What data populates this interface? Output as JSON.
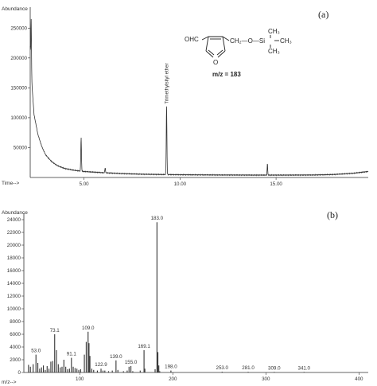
{
  "chart_data": [
    {
      "id": "a",
      "type": "line",
      "panel_label": "(a)",
      "ylabel": "Abundance",
      "xlabel": "Time-->",
      "xlim": [
        2.2,
        19.8
      ],
      "ylim": [
        0,
        285000
      ],
      "x_ticks": [
        5.0,
        10.0,
        15.0
      ],
      "x_tick_labels": [
        "5.00",
        "10.00",
        "15.00"
      ],
      "y_ticks": [
        50000,
        100000,
        150000,
        200000,
        250000
      ],
      "y_tick_labels": [
        "50000",
        "100000",
        "150000",
        "200000",
        "250000"
      ],
      "baseline": [
        [
          2.2,
          220000
        ],
        [
          2.3,
          150000
        ],
        [
          2.4,
          105000
        ],
        [
          2.6,
          72000
        ],
        [
          2.8,
          52000
        ],
        [
          3.0,
          38000
        ],
        [
          3.3,
          27000
        ],
        [
          3.6,
          20000
        ],
        [
          4.0,
          15000
        ],
        [
          4.5,
          12000
        ],
        [
          5.0,
          10000
        ],
        [
          6.0,
          8000
        ],
        [
          7.0,
          6500
        ],
        [
          8.0,
          5500
        ],
        [
          9.0,
          5000
        ],
        [
          10.0,
          4600
        ],
        [
          12.0,
          4200
        ],
        [
          14.0,
          4000
        ],
        [
          15.5,
          4000
        ],
        [
          17.0,
          4200
        ],
        [
          18.0,
          5000
        ],
        [
          19.0,
          7000
        ],
        [
          19.8,
          10000
        ]
      ],
      "peaks": [
        {
          "x": 2.25,
          "y": 265000,
          "width": 0.05
        },
        {
          "x": 4.85,
          "y": 67000,
          "width": 0.06
        },
        {
          "x": 6.1,
          "y": 16000,
          "width": 0.06
        },
        {
          "x": 9.3,
          "y": 120000,
          "width": 0.06
        },
        {
          "x": 14.55,
          "y": 24000,
          "width": 0.05
        }
      ],
      "annotations": [
        {
          "x": 9.3,
          "y": 123000,
          "text": "Trimethylsilyl ether",
          "rotated": true
        }
      ],
      "structure": {
        "aldehyde_label": "OHC",
        "ring_oxygen": "O",
        "chain_label": "CH₂—O—Si",
        "methyl_labels": [
          "CH₃",
          "CH₃",
          "CH₃"
        ],
        "mz_label": "m/z = 183"
      }
    },
    {
      "id": "b",
      "type": "bar",
      "panel_label": "(b)",
      "ylabel": "Abundance",
      "xlabel": "m/z-->",
      "xlim": [
        40,
        410
      ],
      "ylim": [
        0,
        25000
      ],
      "x_ticks": [
        100,
        200,
        300,
        400
      ],
      "x_tick_labels": [
        "100",
        "200",
        "300",
        "400"
      ],
      "y_ticks": [
        0,
        2000,
        4000,
        6000,
        8000,
        10000,
        12000,
        14000,
        16000,
        18000,
        20000,
        22000,
        24000
      ],
      "y_tick_labels": [
        "0",
        "2000",
        "4000",
        "6000",
        "8000",
        "10000",
        "12000",
        "14000",
        "16000",
        "18000",
        "20000",
        "22000",
        "24000"
      ],
      "peaks": [
        {
          "x": 45,
          "y": 1200
        },
        {
          "x": 47,
          "y": 900
        },
        {
          "x": 50,
          "y": 1300
        },
        {
          "x": 53.0,
          "y": 2800
        },
        {
          "x": 55,
          "y": 1500
        },
        {
          "x": 57,
          "y": 600
        },
        {
          "x": 59,
          "y": 800
        },
        {
          "x": 61,
          "y": 1100
        },
        {
          "x": 63,
          "y": 400
        },
        {
          "x": 65,
          "y": 1000
        },
        {
          "x": 67,
          "y": 600
        },
        {
          "x": 69,
          "y": 1700
        },
        {
          "x": 71,
          "y": 1800
        },
        {
          "x": 73.1,
          "y": 6000
        },
        {
          "x": 75,
          "y": 3500
        },
        {
          "x": 77,
          "y": 1300
        },
        {
          "x": 79,
          "y": 800
        },
        {
          "x": 81,
          "y": 900
        },
        {
          "x": 83,
          "y": 2000
        },
        {
          "x": 85,
          "y": 900
        },
        {
          "x": 87,
          "y": 500
        },
        {
          "x": 89,
          "y": 600
        },
        {
          "x": 91.1,
          "y": 2300
        },
        {
          "x": 93,
          "y": 900
        },
        {
          "x": 95,
          "y": 700
        },
        {
          "x": 97,
          "y": 600
        },
        {
          "x": 99,
          "y": 400
        },
        {
          "x": 101,
          "y": 500
        },
        {
          "x": 105,
          "y": 2800
        },
        {
          "x": 107,
          "y": 4800
        },
        {
          "x": 109.0,
          "y": 6400
        },
        {
          "x": 110,
          "y": 4600
        },
        {
          "x": 111,
          "y": 2600
        },
        {
          "x": 113,
          "y": 600
        },
        {
          "x": 115,
          "y": 400
        },
        {
          "x": 119,
          "y": 300
        },
        {
          "x": 122.9,
          "y": 600
        },
        {
          "x": 125,
          "y": 300
        },
        {
          "x": 127,
          "y": 300
        },
        {
          "x": 131,
          "y": 200
        },
        {
          "x": 135,
          "y": 300
        },
        {
          "x": 139.0,
          "y": 1900
        },
        {
          "x": 141,
          "y": 400
        },
        {
          "x": 147,
          "y": 200
        },
        {
          "x": 151,
          "y": 300
        },
        {
          "x": 153,
          "y": 900
        },
        {
          "x": 155.0,
          "y": 1000
        },
        {
          "x": 157,
          "y": 200
        },
        {
          "x": 165,
          "y": 300
        },
        {
          "x": 169.1,
          "y": 3500
        },
        {
          "x": 170,
          "y": 600
        },
        {
          "x": 181,
          "y": 500
        },
        {
          "x": 183.0,
          "y": 23600
        },
        {
          "x": 184,
          "y": 3200
        },
        {
          "x": 185,
          "y": 1100
        },
        {
          "x": 186,
          "y": 200
        },
        {
          "x": 198.0,
          "y": 300
        },
        {
          "x": 253.0,
          "y": 120
        },
        {
          "x": 281.0,
          "y": 100
        },
        {
          "x": 309.0,
          "y": 90
        },
        {
          "x": 341.0,
          "y": 90
        }
      ],
      "peak_labels": [
        {
          "x": 53.0,
          "y": 2800,
          "text": "53.0"
        },
        {
          "x": 73.1,
          "y": 6000,
          "text": "73.1"
        },
        {
          "x": 91.1,
          "y": 2300,
          "text": "91.1"
        },
        {
          "x": 109.0,
          "y": 6400,
          "text": "109.0"
        },
        {
          "x": 122.9,
          "y": 600,
          "text": "122.9"
        },
        {
          "x": 139.0,
          "y": 1900,
          "text": "139.0"
        },
        {
          "x": 155.0,
          "y": 1000,
          "text": "155.0"
        },
        {
          "x": 169.1,
          "y": 3500,
          "text": "169.1"
        },
        {
          "x": 183.0,
          "y": 23600,
          "text": "183.0"
        },
        {
          "x": 198.0,
          "y": 300,
          "text": "198.0"
        },
        {
          "x": 253.0,
          "y": 120,
          "text": "253.0"
        },
        {
          "x": 281.0,
          "y": 100,
          "text": "281.0"
        },
        {
          "x": 309.0,
          "y": 90,
          "text": "309.0"
        },
        {
          "x": 341.0,
          "y": 90,
          "text": "341.0"
        }
      ]
    }
  ]
}
